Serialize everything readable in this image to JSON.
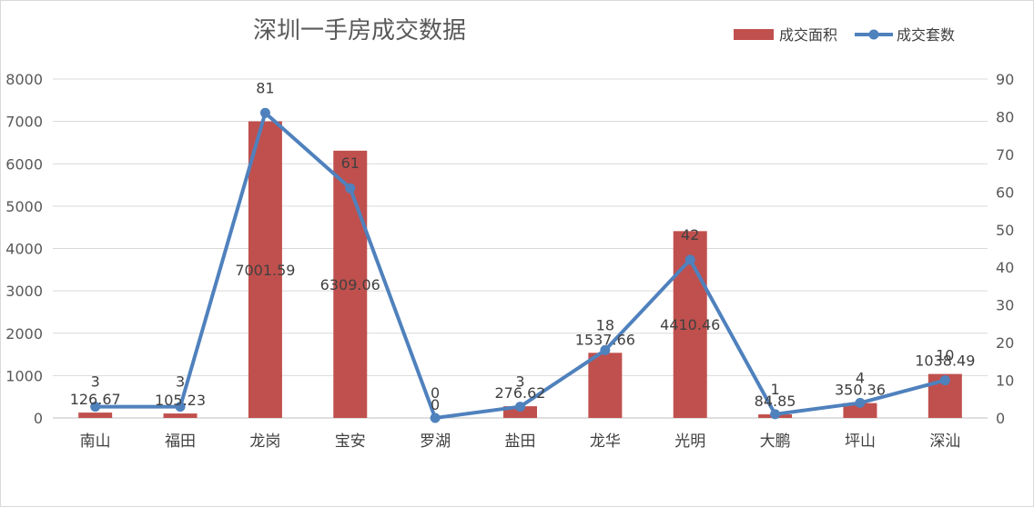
{
  "chart_data": {
    "type": "bar",
    "title": "深圳一手房成交数据",
    "categories": [
      "南山",
      "福田",
      "龙岗",
      "宝安",
      "罗湖",
      "盐田",
      "龙华",
      "光明",
      "大鹏",
      "坪山",
      "深汕"
    ],
    "series": [
      {
        "name": "成交面积",
        "type": "bar",
        "axis": "left",
        "color": "#c0504d",
        "values": [
          126.67,
          105.23,
          7001.59,
          6309.06,
          0,
          276.62,
          1537.66,
          4410.46,
          84.85,
          350.36,
          1038.49
        ],
        "labels": [
          "126.67",
          "105.23",
          "7001.59",
          "6309.06",
          "0",
          "276.62",
          "1537.66",
          "4410.46",
          "84.85",
          "350.36",
          "1038.49"
        ]
      },
      {
        "name": "成交套数",
        "type": "line",
        "axis": "right",
        "color": "#4f81bd",
        "values": [
          3,
          3,
          81,
          61,
          0,
          3,
          18,
          42,
          1,
          4,
          10
        ],
        "labels": [
          "3",
          "3",
          "81",
          "61",
          "0",
          "3",
          "18",
          "42",
          "1",
          "4",
          "10"
        ]
      }
    ],
    "y_left": {
      "min": 0,
      "max": 8000,
      "step": 1000,
      "ticks": [
        "0",
        "1000",
        "2000",
        "3000",
        "4000",
        "5000",
        "6000",
        "7000",
        "8000"
      ]
    },
    "y_right": {
      "min": 0,
      "max": 90,
      "step": 10,
      "ticks": [
        "0",
        "10",
        "20",
        "30",
        "40",
        "50",
        "60",
        "70",
        "80",
        "90"
      ]
    },
    "grid": true,
    "legend_position": "top-right"
  }
}
